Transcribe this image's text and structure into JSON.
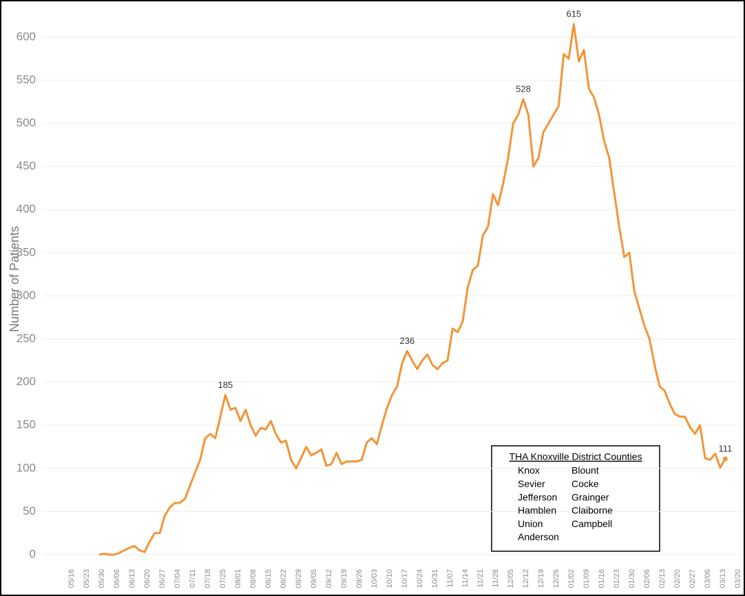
{
  "chart_data": {
    "type": "line",
    "y_label": "Number of Patients",
    "categories": [
      "05/16",
      null,
      null,
      "05/23",
      null,
      null,
      "05/30",
      null,
      null,
      "06/06",
      null,
      null,
      "06/13",
      null,
      null,
      "06/20",
      null,
      null,
      "06/27",
      null,
      null,
      "07/04",
      null,
      null,
      "07/11",
      null,
      null,
      "07/18",
      null,
      null,
      "07/25",
      null,
      null,
      "08/01",
      null,
      null,
      "08/08",
      null,
      null,
      "08/15",
      null,
      null,
      "08/22",
      null,
      null,
      "08/29",
      null,
      null,
      "09/05",
      null,
      null,
      "09/12",
      null,
      null,
      "09/19",
      null,
      null,
      "09/26",
      null,
      null,
      "10/03",
      null,
      null,
      "10/10",
      null,
      null,
      "10/17",
      null,
      null,
      "10/24",
      null,
      null,
      "10/31",
      null,
      null,
      "11/07",
      null,
      null,
      "11/14",
      null,
      null,
      "11/21",
      null,
      null,
      "11/28",
      null,
      null,
      "12/05",
      null,
      null,
      "12/12",
      null,
      null,
      "12/19",
      null,
      null,
      "12/26",
      null,
      null,
      "01/02",
      null,
      null,
      "01/09",
      null,
      null,
      "01/16",
      null,
      null,
      "01/23",
      null,
      null,
      "01/30",
      null,
      null,
      "02/06",
      null,
      null,
      "02/13",
      null,
      null,
      "02/20",
      null,
      null,
      "02/27",
      null,
      null,
      "03/06",
      null,
      null,
      "03/13",
      null,
      null,
      "03/20"
    ],
    "values": [
      null,
      null,
      null,
      null,
      null,
      null,
      0,
      1,
      0,
      0,
      2,
      5,
      8,
      10,
      5,
      3,
      15,
      25,
      25,
      45,
      55,
      60,
      60,
      65,
      80,
      95,
      110,
      135,
      140,
      135,
      160,
      185,
      168,
      170,
      155,
      168,
      150,
      138,
      147,
      145,
      155,
      140,
      130,
      132,
      110,
      100,
      112,
      125,
      115,
      118,
      122,
      103,
      105,
      118,
      105,
      108,
      108,
      108,
      110,
      130,
      135,
      128,
      150,
      170,
      185,
      195,
      222,
      236,
      225,
      215,
      225,
      232,
      220,
      215,
      222,
      225,
      262,
      258,
      270,
      310,
      330,
      335,
      370,
      380,
      418,
      405,
      430,
      460,
      500,
      510,
      528,
      510,
      450,
      460,
      490,
      500,
      510,
      520,
      580,
      575,
      615,
      572,
      585,
      540,
      530,
      510,
      480,
      460,
      420,
      380,
      345,
      350,
      305,
      285,
      265,
      250,
      220,
      195,
      190,
      175,
      163,
      160,
      160,
      148,
      140,
      150,
      112,
      110,
      117,
      101,
      111,
      null,
      null
    ],
    "value_labels": [
      null,
      null,
      null,
      null,
      null,
      null,
      null,
      null,
      null,
      null,
      null,
      null,
      null,
      null,
      null,
      null,
      null,
      null,
      null,
      null,
      null,
      null,
      null,
      null,
      null,
      null,
      null,
      null,
      null,
      null,
      null,
      "185",
      null,
      null,
      null,
      null,
      null,
      null,
      null,
      null,
      null,
      null,
      null,
      null,
      null,
      null,
      null,
      null,
      null,
      null,
      null,
      null,
      null,
      null,
      null,
      null,
      null,
      null,
      null,
      null,
      null,
      null,
      null,
      null,
      null,
      null,
      null,
      "236",
      null,
      null,
      null,
      null,
      null,
      null,
      null,
      null,
      null,
      null,
      null,
      null,
      null,
      null,
      null,
      null,
      null,
      null,
      null,
      null,
      null,
      null,
      "528",
      null,
      null,
      null,
      null,
      null,
      null,
      null,
      null,
      null,
      "615",
      null,
      null,
      null,
      null,
      null,
      null,
      null,
      null,
      null,
      null,
      null,
      null,
      null,
      null,
      null,
      null,
      null,
      null,
      null,
      null,
      null,
      null,
      null,
      null,
      null,
      null,
      null,
      null,
      null,
      "111",
      null,
      null
    ],
    "color": "#f39436",
    "ylim": [
      -12,
      627
    ],
    "yticks": [
      0,
      50,
      100,
      150,
      200,
      250,
      300,
      350,
      400,
      450,
      500,
      550,
      600
    ],
    "grid": true,
    "legend_box": {
      "title": "THA Knoxville District Counties",
      "items": [
        "Knox",
        "Blount",
        "Sevier",
        "Cocke",
        "Jefferson",
        "Grainger",
        "Hamblen",
        "Claiborne",
        "Union",
        "Campbell",
        "Anderson"
      ]
    }
  }
}
